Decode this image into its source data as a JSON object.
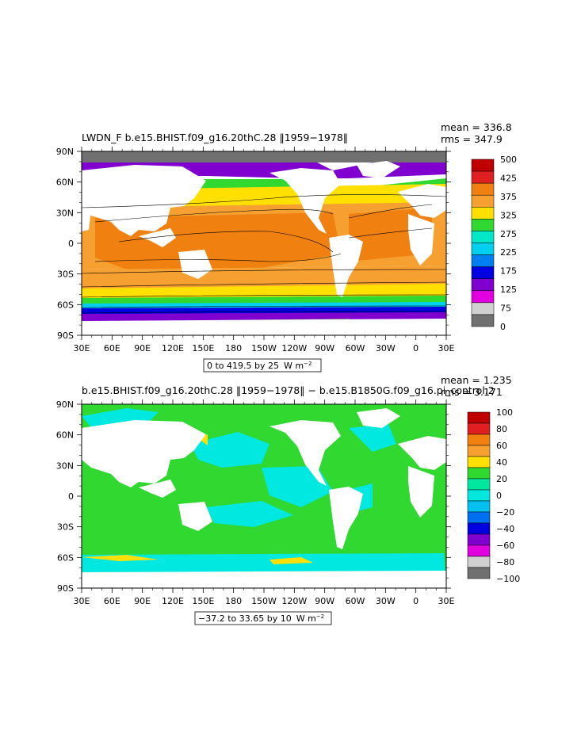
{
  "chart_data": [
    {
      "type": "heatmap",
      "title": "LWDN_F b.e15.BHIST.f09_g16.20thC.28 ‖1959−1978‖",
      "stats": {
        "mean": "mean = 336.8",
        "rms": "rms = 347.9"
      },
      "range_label": "0 to 419.5 by 25",
      "units": "W m",
      "units_exp": "−2",
      "x_ticks": [
        "30E",
        "60E",
        "90E",
        "120E",
        "150E",
        "180",
        "150W",
        "120W",
        "90W",
        "60W",
        "30W",
        "0",
        "30E"
      ],
      "y_ticks": [
        "90N",
        "60N",
        "30N",
        "0",
        "30S",
        "60S",
        "90S"
      ],
      "legend_levels": [
        "500",
        "425",
        "375",
        "325",
        "275",
        "225",
        "175",
        "125",
        "75",
        "0"
      ],
      "legend_colors": [
        "#c00000",
        "#e02020",
        "#f08010",
        "#f5a030",
        "#ffe000",
        "#30d830",
        "#00e8c8",
        "#00d0f0",
        "#0080f0",
        "#0000e0",
        "#8000d0",
        "#e000e0",
        "#d0d0d0",
        "#707070"
      ],
      "legend_type": "contour-fill"
    },
    {
      "type": "heatmap",
      "title": "b.e15.BHIST.f09_g16.20thC.28 ‖1959−1978‖ − b.e15.B1850G.f09_g16.pi_control.2",
      "stats": {
        "mean": "mean = 1.235",
        "rms": "rms = 3.171"
      },
      "range_label": "−37.2 to 33.65 by 10",
      "units": "W m",
      "units_exp": "−2",
      "x_ticks": [
        "30E",
        "60E",
        "90E",
        "120E",
        "150E",
        "180",
        "150W",
        "120W",
        "90W",
        "60W",
        "30W",
        "0",
        "30E"
      ],
      "y_ticks": [
        "90N",
        "60N",
        "30N",
        "0",
        "30S",
        "60S",
        "90S"
      ],
      "legend_levels": [
        "100",
        "80",
        "60",
        "40",
        "20",
        "0",
        "−20",
        "−40",
        "−60",
        "−80",
        "−100"
      ],
      "legend_colors": [
        "#c00000",
        "#e02020",
        "#f08010",
        "#f5a030",
        "#ffe000",
        "#30d830",
        "#00e8a0",
        "#00e8e0",
        "#00c0f0",
        "#0070f0",
        "#0000e0",
        "#8000d0",
        "#e000e0",
        "#d0d0d0",
        "#707070"
      ],
      "legend_type": "difference"
    }
  ]
}
